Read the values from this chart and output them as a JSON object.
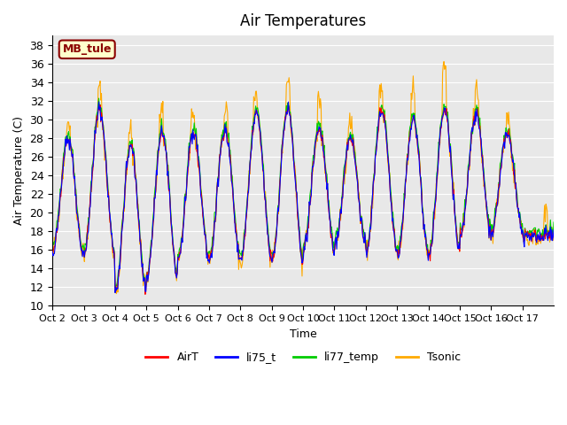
{
  "title": "Air Temperatures",
  "ylabel": "Air Temperature (C)",
  "xlabel": "Time",
  "ylim": [
    10,
    39
  ],
  "yticks": [
    10,
    12,
    14,
    16,
    18,
    20,
    22,
    24,
    26,
    28,
    30,
    32,
    34,
    36,
    38
  ],
  "series_colors": {
    "AirT": "#ff0000",
    "li75_t": "#0000ff",
    "li77_temp": "#00cc00",
    "Tsonic": "#ffaa00"
  },
  "legend_labels": [
    "AirT",
    "li75_t",
    "li77_temp",
    "Tsonic"
  ],
  "site_label": "MB_tule",
  "site_label_color": "#8b0000",
  "site_label_bg": "#ffffcc",
  "background_color": "#e8e8e8",
  "grid_color": "#ffffff",
  "x_tick_labels": [
    "Oct 2",
    "Oct 3",
    "Oct 4",
    "Oct 5",
    "Oct 6",
    "Oct 7",
    "Oct 8",
    "Oct 9",
    "Oct 10",
    "Oct 11",
    "Oct 12",
    "Oct 13",
    "Oct 14",
    "Oct 15",
    "Oct 16",
    "Oct 17"
  ],
  "num_days": 16,
  "points_per_day": 48
}
